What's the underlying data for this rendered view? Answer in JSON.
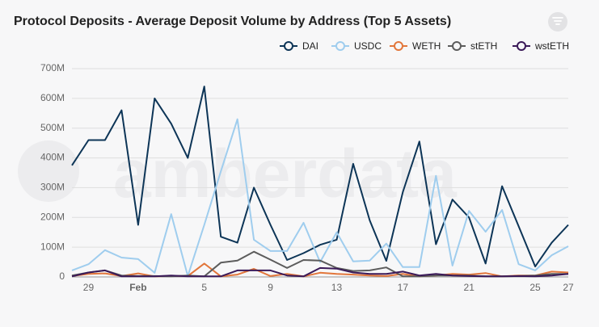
{
  "chart_data": {
    "type": "line",
    "title": "Protocol Deposits - Average Deposit Volume by Address (Top 5 Assets)",
    "watermark": "amberdata",
    "categories": [
      null,
      "29",
      null,
      null,
      "Feb",
      null,
      null,
      null,
      "5",
      null,
      null,
      null,
      "9",
      null,
      null,
      null,
      "13",
      null,
      null,
      null,
      "17",
      null,
      null,
      null,
      "21",
      null,
      null,
      null,
      "25",
      null,
      "27"
    ],
    "ylim": [
      0,
      700000000
    ],
    "yticks": [
      {
        "value": 0,
        "label": "0"
      },
      {
        "value": 100000000,
        "label": "100M"
      },
      {
        "value": 200000000,
        "label": "200M"
      },
      {
        "value": 300000000,
        "label": "300M"
      },
      {
        "value": 400000000,
        "label": "400M"
      },
      {
        "value": 500000000,
        "label": "500M"
      },
      {
        "value": 600000000,
        "label": "600M"
      },
      {
        "value": 700000000,
        "label": "700M"
      }
    ],
    "grid": true,
    "legend": "top-right",
    "series": [
      {
        "name": "DAI",
        "color": "#0d3557",
        "values": [
          375000000,
          460000000,
          460000000,
          560000000,
          175000000,
          600000000,
          515000000,
          400000000,
          640000000,
          135000000,
          115000000,
          300000000,
          175000000,
          57000000,
          80000000,
          108000000,
          125000000,
          380000000,
          190000000,
          54000000,
          285000000,
          455000000,
          110000000,
          260000000,
          200000000,
          45000000,
          305000000,
          170000000,
          35000000,
          115000000,
          175000000
        ]
      },
      {
        "name": "USDC",
        "color": "#9fcdee",
        "values": [
          22000000,
          43000000,
          90000000,
          65000000,
          60000000,
          14000000,
          211000000,
          3000000,
          175000000,
          355000000,
          530000000,
          125000000,
          87000000,
          87000000,
          182000000,
          50000000,
          150000000,
          52000000,
          55000000,
          112000000,
          33000000,
          33000000,
          340000000,
          38000000,
          222000000,
          152000000,
          225000000,
          43000000,
          22000000,
          73000000,
          103000000
        ]
      },
      {
        "name": "WETH",
        "color": "#e2763b",
        "values": [
          3000000,
          10000000,
          12000000,
          3000000,
          12000000,
          2000000,
          3000000,
          3000000,
          45000000,
          2000000,
          8000000,
          27000000,
          3000000,
          10000000,
          2000000,
          14000000,
          10000000,
          8000000,
          5000000,
          3000000,
          10000000,
          2000000,
          5000000,
          10000000,
          8000000,
          13000000,
          2000000,
          5000000,
          5000000,
          18000000,
          15000000
        ]
      },
      {
        "name": "stETH",
        "color": "#5c5c5c",
        "values": [
          5000000,
          15000000,
          22000000,
          5000000,
          3000000,
          3000000,
          2000000,
          5000000,
          2000000,
          48000000,
          55000000,
          85000000,
          58000000,
          30000000,
          57000000,
          55000000,
          30000000,
          20000000,
          22000000,
          32000000,
          2000000,
          2000000,
          5000000,
          5000000,
          5000000,
          2000000,
          2000000,
          3000000,
          5000000,
          10000000,
          10000000
        ]
      },
      {
        "name": "wstETH",
        "color": "#3a1958",
        "values": [
          2000000,
          15000000,
          22000000,
          2000000,
          2000000,
          2000000,
          5000000,
          2000000,
          2000000,
          2000000,
          22000000,
          22000000,
          22000000,
          5000000,
          2000000,
          30000000,
          28000000,
          15000000,
          10000000,
          10000000,
          18000000,
          5000000,
          10000000,
          5000000,
          3000000,
          2000000,
          2000000,
          3000000,
          2000000,
          5000000,
          10000000
        ]
      }
    ]
  }
}
